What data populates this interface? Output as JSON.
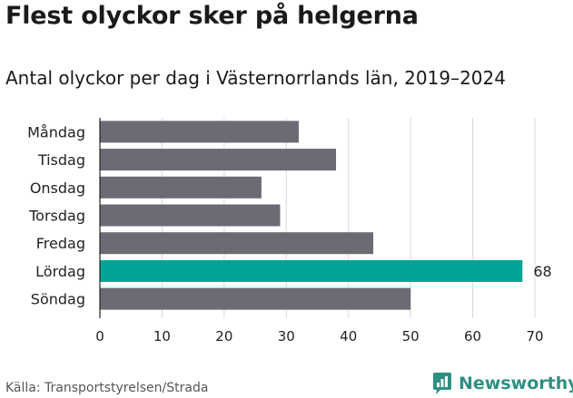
{
  "header": {
    "title": "Flest olyckor sker på helgerna",
    "subtitle": "Antal olyckor per dag i Västernorrlands län, 2019–2024"
  },
  "footer": {
    "source": "Källa: Transportstyrelsen/Strada",
    "brand": "Newsworthy"
  },
  "colors": {
    "bar": "#6d6a73",
    "highlight": "#00a396",
    "grid": "#d9d9d9",
    "brand": "#2f8f82"
  },
  "chart_data": {
    "type": "bar",
    "orientation": "horizontal",
    "categories": [
      "Måndag",
      "Tisdag",
      "Onsdag",
      "Torsdag",
      "Fredag",
      "Lördag",
      "Söndag"
    ],
    "values": [
      32,
      38,
      26,
      29,
      44,
      68,
      50
    ],
    "highlight_index": 5,
    "data_labels": [
      null,
      null,
      null,
      null,
      null,
      "68",
      null
    ],
    "xlim": [
      0,
      70
    ],
    "xticks": [
      0,
      10,
      20,
      30,
      40,
      50,
      60,
      70
    ],
    "grid": true
  }
}
